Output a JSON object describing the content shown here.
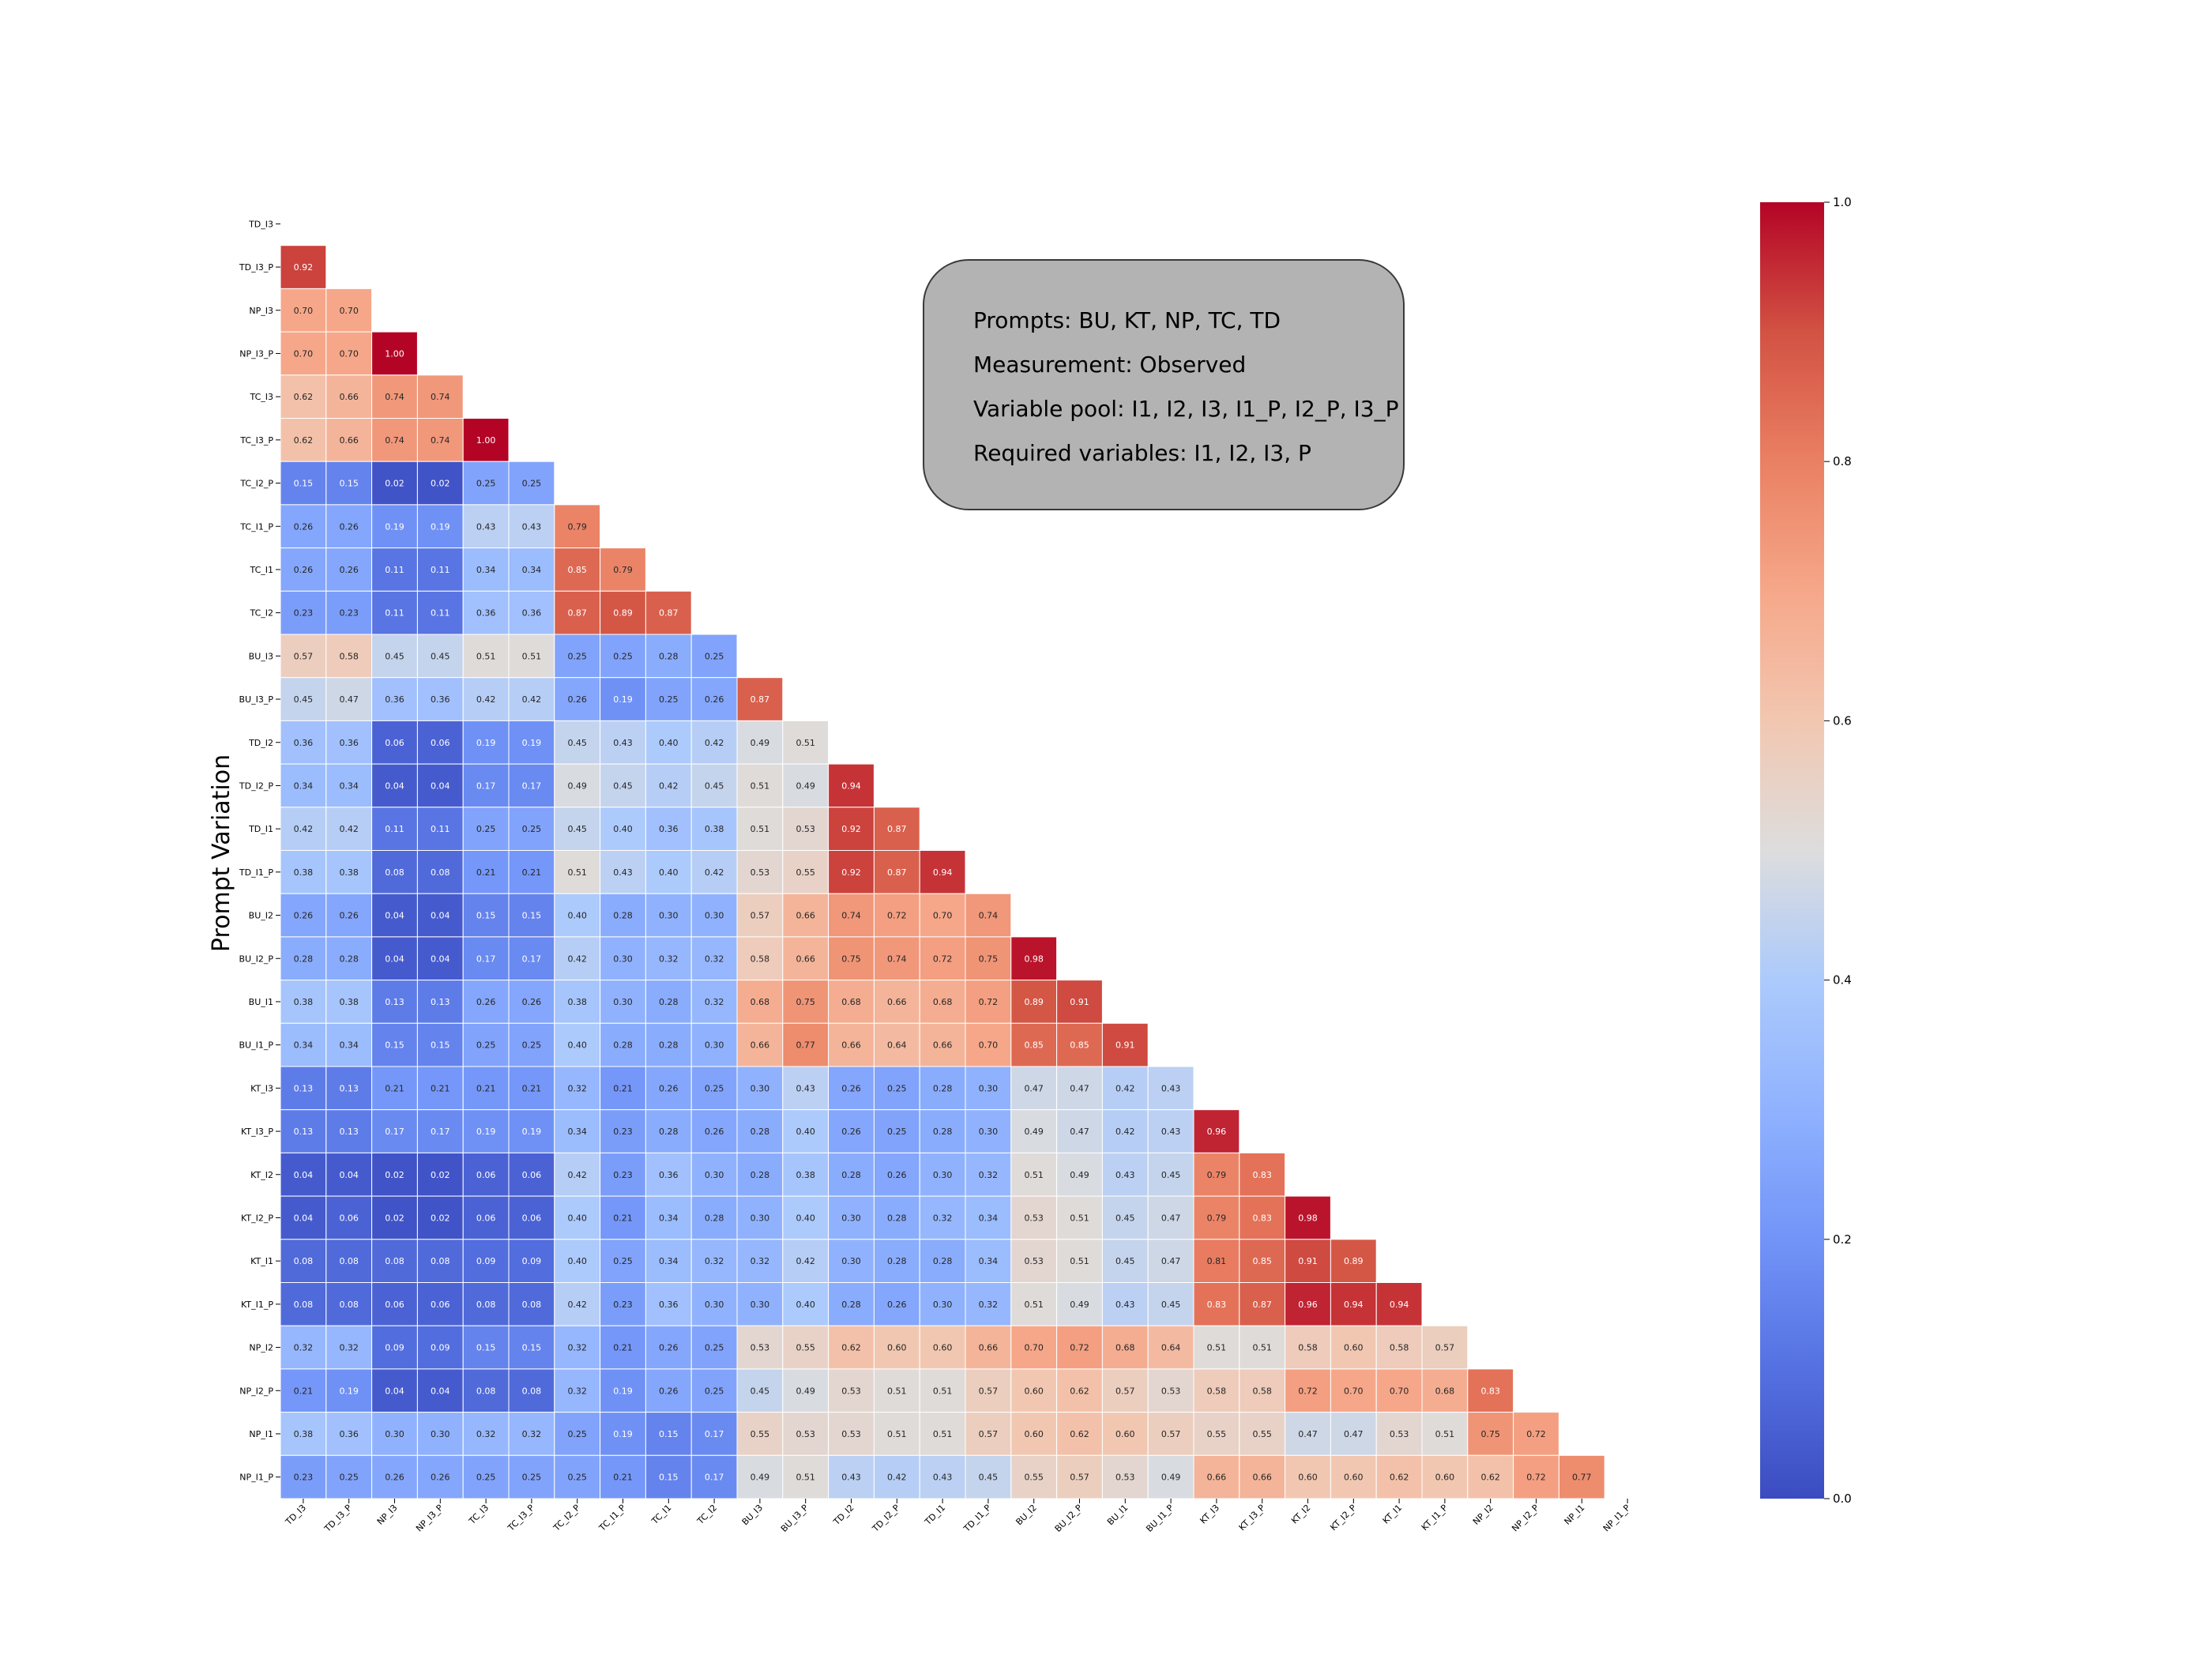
{
  "chart_data": {
    "type": "heatmap",
    "title": "",
    "xlabel": "",
    "ylabel": "Prompt Variation",
    "mask": "upper-triangle-including-diagonal",
    "colormap": "coolwarm",
    "vmin": 0.0,
    "vmax": 1.0,
    "colorbar_ticks": [
      "0.0",
      "0.2",
      "0.4",
      "0.6",
      "0.8",
      "1.0"
    ],
    "labels": [
      "TD_I3",
      "TD_I3_P",
      "NP_I3",
      "NP_I3_P",
      "TC_I3",
      "TC_I3_P",
      "TC_I2_P",
      "TC_I1_P",
      "TC_I1",
      "TC_I2",
      "BU_I3",
      "BU_I3_P",
      "TD_I2",
      "TD_I2_P",
      "TD_I1",
      "TD_I1_P",
      "BU_I2",
      "BU_I2_P",
      "BU_I1",
      "BU_I1_P",
      "KT_I3",
      "KT_I3_P",
      "KT_I2",
      "KT_I2_P",
      "KT_I1",
      "KT_I1_P",
      "NP_I2",
      "NP_I2_P",
      "NP_I1",
      "NP_I1_P"
    ],
    "rows": [
      [],
      [
        0.92
      ],
      [
        0.7,
        0.7
      ],
      [
        0.7,
        0.7,
        1.0
      ],
      [
        0.62,
        0.66,
        0.74,
        0.74
      ],
      [
        0.62,
        0.66,
        0.74,
        0.74,
        1.0
      ],
      [
        0.15,
        0.15,
        0.02,
        0.02,
        0.25,
        0.25
      ],
      [
        0.26,
        0.26,
        0.19,
        0.19,
        0.43,
        0.43,
        0.79
      ],
      [
        0.26,
        0.26,
        0.11,
        0.11,
        0.34,
        0.34,
        0.85,
        0.79
      ],
      [
        0.23,
        0.23,
        0.11,
        0.11,
        0.36,
        0.36,
        0.87,
        0.89,
        0.87
      ],
      [
        0.57,
        0.58,
        0.45,
        0.45,
        0.51,
        0.51,
        0.25,
        0.25,
        0.28,
        0.25
      ],
      [
        0.45,
        0.47,
        0.36,
        0.36,
        0.42,
        0.42,
        0.26,
        0.19,
        0.25,
        0.26,
        0.87
      ],
      [
        0.36,
        0.36,
        0.06,
        0.06,
        0.19,
        0.19,
        0.45,
        0.43,
        0.4,
        0.42,
        0.49,
        0.51
      ],
      [
        0.34,
        0.34,
        0.04,
        0.04,
        0.17,
        0.17,
        0.49,
        0.45,
        0.42,
        0.45,
        0.51,
        0.49,
        0.94
      ],
      [
        0.42,
        0.42,
        0.11,
        0.11,
        0.25,
        0.25,
        0.45,
        0.4,
        0.36,
        0.38,
        0.51,
        0.53,
        0.92,
        0.87
      ],
      [
        0.38,
        0.38,
        0.08,
        0.08,
        0.21,
        0.21,
        0.51,
        0.43,
        0.4,
        0.42,
        0.53,
        0.55,
        0.92,
        0.87,
        0.94
      ],
      [
        0.26,
        0.26,
        0.04,
        0.04,
        0.15,
        0.15,
        0.4,
        0.28,
        0.3,
        0.3,
        0.57,
        0.66,
        0.74,
        0.72,
        0.7,
        0.74
      ],
      [
        0.28,
        0.28,
        0.04,
        0.04,
        0.17,
        0.17,
        0.42,
        0.3,
        0.32,
        0.32,
        0.58,
        0.66,
        0.75,
        0.74,
        0.72,
        0.75,
        0.98
      ],
      [
        0.38,
        0.38,
        0.13,
        0.13,
        0.26,
        0.26,
        0.38,
        0.3,
        0.28,
        0.32,
        0.68,
        0.75,
        0.68,
        0.66,
        0.68,
        0.72,
        0.89,
        0.91
      ],
      [
        0.34,
        0.34,
        0.15,
        0.15,
        0.25,
        0.25,
        0.4,
        0.28,
        0.28,
        0.3,
        0.66,
        0.77,
        0.66,
        0.64,
        0.66,
        0.7,
        0.85,
        0.85,
        0.91
      ],
      [
        0.13,
        0.13,
        0.21,
        0.21,
        0.21,
        0.21,
        0.32,
        0.21,
        0.26,
        0.25,
        0.3,
        0.43,
        0.26,
        0.25,
        0.28,
        0.3,
        0.47,
        0.47,
        0.42,
        0.43
      ],
      [
        0.13,
        0.13,
        0.17,
        0.17,
        0.19,
        0.19,
        0.34,
        0.23,
        0.28,
        0.26,
        0.28,
        0.4,
        0.26,
        0.25,
        0.28,
        0.3,
        0.49,
        0.47,
        0.42,
        0.43,
        0.96
      ],
      [
        0.04,
        0.04,
        0.02,
        0.02,
        0.06,
        0.06,
        0.42,
        0.23,
        0.36,
        0.3,
        0.28,
        0.38,
        0.28,
        0.26,
        0.3,
        0.32,
        0.51,
        0.49,
        0.43,
        0.45,
        0.79,
        0.83
      ],
      [
        0.04,
        0.06,
        0.02,
        0.02,
        0.06,
        0.06,
        0.4,
        0.21,
        0.34,
        0.28,
        0.3,
        0.4,
        0.3,
        0.28,
        0.32,
        0.34,
        0.53,
        0.51,
        0.45,
        0.47,
        0.79,
        0.83,
        0.98
      ],
      [
        0.08,
        0.08,
        0.08,
        0.08,
        0.09,
        0.09,
        0.4,
        0.25,
        0.34,
        0.32,
        0.32,
        0.42,
        0.3,
        0.28,
        0.28,
        0.34,
        0.53,
        0.51,
        0.45,
        0.47,
        0.81,
        0.85,
        0.91,
        0.89
      ],
      [
        0.08,
        0.08,
        0.06,
        0.06,
        0.08,
        0.08,
        0.42,
        0.23,
        0.36,
        0.3,
        0.3,
        0.4,
        0.28,
        0.26,
        0.3,
        0.32,
        0.51,
        0.49,
        0.43,
        0.45,
        0.83,
        0.87,
        0.96,
        0.94,
        0.94
      ],
      [
        0.32,
        0.32,
        0.09,
        0.09,
        0.15,
        0.15,
        0.32,
        0.21,
        0.26,
        0.25,
        0.53,
        0.55,
        0.62,
        0.6,
        0.6,
        0.66,
        0.7,
        0.72,
        0.68,
        0.64,
        0.51,
        0.51,
        0.58,
        0.6,
        0.58,
        0.57
      ],
      [
        0.21,
        0.19,
        0.04,
        0.04,
        0.08,
        0.08,
        0.32,
        0.19,
        0.26,
        0.25,
        0.45,
        0.49,
        0.53,
        0.51,
        0.51,
        0.57,
        0.6,
        0.62,
        0.57,
        0.53,
        0.58,
        0.58,
        0.72,
        0.7,
        0.7,
        0.68,
        0.83
      ],
      [
        0.38,
        0.36,
        0.3,
        0.3,
        0.32,
        0.32,
        0.25,
        0.19,
        0.15,
        0.17,
        0.55,
        0.53,
        0.53,
        0.51,
        0.51,
        0.57,
        0.6,
        0.62,
        0.6,
        0.57,
        0.55,
        0.55,
        0.47,
        0.47,
        0.53,
        0.51,
        0.75,
        0.72
      ],
      [
        0.23,
        0.25,
        0.26,
        0.26,
        0.25,
        0.25,
        0.25,
        0.21,
        0.15,
        0.17,
        0.49,
        0.51,
        0.43,
        0.42,
        0.43,
        0.45,
        0.55,
        0.57,
        0.53,
        0.49,
        0.66,
        0.66,
        0.6,
        0.6,
        0.62,
        0.6,
        0.62,
        0.72,
        0.77
      ]
    ]
  },
  "info_box": {
    "lines": [
      "Prompts: BU, KT, NP, TC, TD",
      "Measurement: Observed",
      "Variable pool: I1, I2, I3, I1_P, I2_P, I3_P",
      "Required variables: I1, I2, I3, P"
    ]
  }
}
